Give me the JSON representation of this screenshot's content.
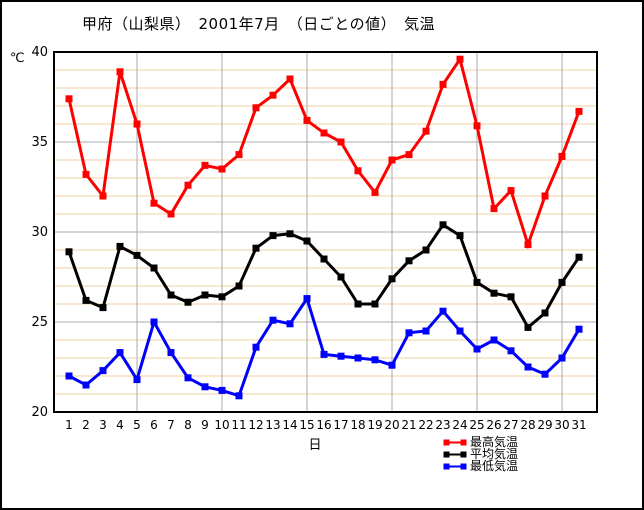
{
  "title": "甲府（山梨県）　2001年7月　（日ごとの値）　気温",
  "colors": {
    "background": "#FFFFFF",
    "frame": "#000000",
    "minor_grid": "#F2D2A2",
    "major_grid": "#ABABAB",
    "max_series": "#FF0000",
    "avg_series": "#000000",
    "min_series": "#0000FF"
  },
  "chart_data": {
    "type": "line",
    "title": "甲府（山梨県）　2001年7月　（日ごとの値）　気温",
    "xlabel": "日",
    "ylabel": "℃",
    "ylim": [
      20,
      40
    ],
    "yticks": [
      20,
      25,
      30,
      35,
      40
    ],
    "y_minor_step": 1,
    "x_gridline_days": [
      5,
      10,
      15,
      20,
      25,
      30
    ],
    "grid": true,
    "legend_position": "bottom-right",
    "x": [
      1,
      2,
      3,
      4,
      5,
      6,
      7,
      8,
      9,
      10,
      11,
      12,
      13,
      14,
      15,
      16,
      17,
      18,
      19,
      20,
      21,
      22,
      23,
      24,
      25,
      26,
      27,
      28,
      29,
      30,
      31
    ],
    "series": [
      {
        "name": "最高気温",
        "color": "#FF0000",
        "values": [
          37.4,
          33.2,
          32.0,
          38.9,
          36.0,
          31.6,
          31.0,
          32.6,
          33.7,
          33.5,
          34.3,
          36.9,
          37.6,
          38.5,
          36.2,
          35.5,
          35.0,
          33.4,
          32.2,
          34.0,
          34.3,
          35.6,
          38.2,
          39.6,
          35.9,
          31.3,
          32.3,
          29.3,
          32.0,
          34.2,
          36.7
        ]
      },
      {
        "name": "平均気温",
        "color": "#000000",
        "values": [
          28.9,
          26.2,
          25.8,
          29.2,
          28.7,
          28.0,
          26.5,
          26.1,
          26.5,
          26.4,
          27.0,
          29.1,
          29.8,
          29.9,
          29.5,
          28.5,
          27.5,
          26.0,
          26.0,
          27.4,
          28.4,
          29.0,
          30.4,
          29.8,
          27.2,
          26.6,
          26.4,
          24.7,
          25.5,
          27.2,
          28.6
        ]
      },
      {
        "name": "最低気温",
        "color": "#0000FF",
        "values": [
          22.0,
          21.5,
          22.3,
          23.3,
          21.8,
          25.0,
          23.3,
          21.9,
          21.4,
          21.2,
          20.9,
          23.6,
          25.1,
          24.9,
          26.3,
          23.2,
          23.1,
          23.0,
          22.9,
          22.6,
          24.4,
          24.5,
          25.6,
          24.5,
          23.5,
          24.0,
          23.4,
          22.5,
          22.1,
          23.0,
          24.6
        ]
      }
    ]
  }
}
